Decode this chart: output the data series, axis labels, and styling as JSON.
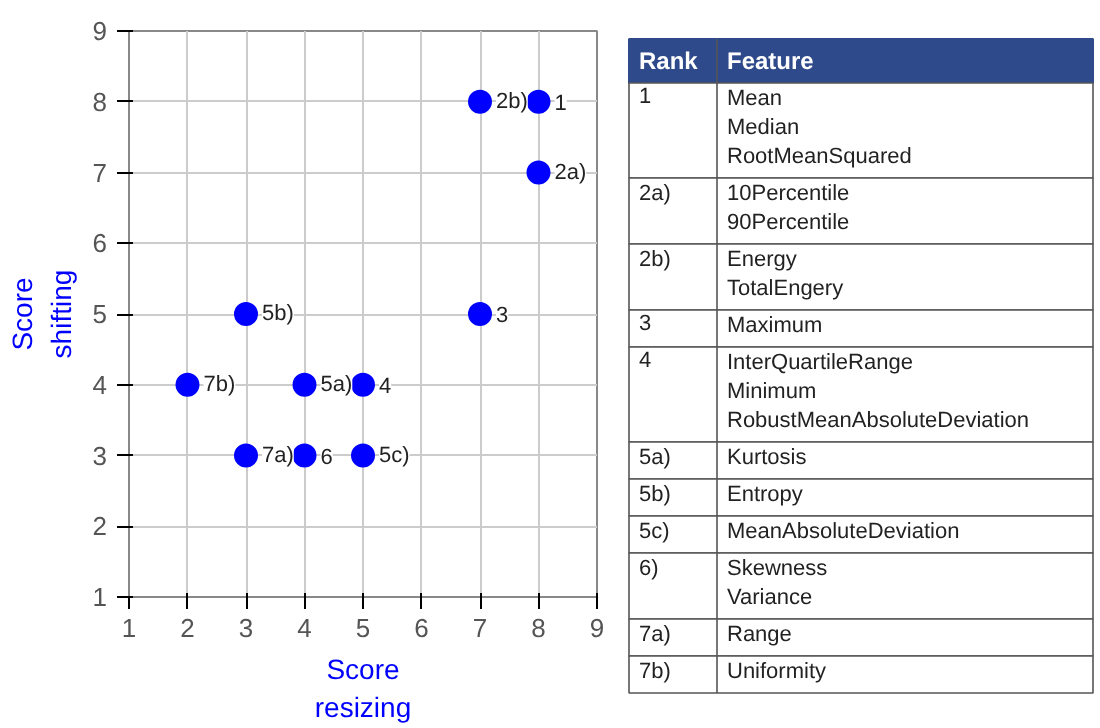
{
  "chart_data": [
    {
      "type": "scatter",
      "xlabel": "Score\nresizing",
      "ylabel": "Score\nshifting",
      "x": [
        8,
        7,
        8,
        7,
        5,
        4,
        3,
        5,
        4,
        3,
        2
      ],
      "values": [
        8,
        8,
        7,
        5,
        4,
        4,
        5,
        3,
        3,
        3,
        4
      ],
      "color": "#0000ff",
      "marker": "circle",
      "xlim": [
        1,
        9
      ],
      "ylim": [
        1,
        9
      ],
      "xticks": [
        1,
        2,
        3,
        4,
        5,
        6,
        7,
        8,
        9
      ],
      "yticks": [
        1,
        2,
        3,
        4,
        5,
        6,
        7,
        8,
        9
      ],
      "grid": true,
      "annotations": [
        {
          "text": "1",
          "x": 8,
          "y": 8
        },
        {
          "text": "2b)",
          "x": 7,
          "y": 8
        },
        {
          "text": "2a)",
          "x": 8,
          "y": 7
        },
        {
          "text": "3",
          "x": 7,
          "y": 5
        },
        {
          "text": "4",
          "x": 5,
          "y": 4
        },
        {
          "text": "5a)",
          "x": 4,
          "y": 4
        },
        {
          "text": "5b)",
          "x": 3,
          "y": 5
        },
        {
          "text": "5c)",
          "x": 5,
          "y": 3
        },
        {
          "text": "6",
          "x": 4,
          "y": 3
        },
        {
          "text": "7a)",
          "x": 3,
          "y": 3
        },
        {
          "text": "7b)",
          "x": 2,
          "y": 4
        }
      ]
    },
    {
      "type": "other",
      "annotations": [
        "Rank",
        "Feature",
        "1",
        "Mean\nMedian\nRootMeanSquared",
        "2a)",
        "10Percentile\n90Percentile",
        "2b)",
        "Energy\nTotalEngery",
        "3",
        "Maximum",
        "4",
        "InterQuartileRange\nMinimum\nRobustMeanAbsoluteDeviation",
        "5a)",
        "Kurtosis",
        "5b)",
        "Entropy",
        "5c)",
        "MeanAbsoluteDeviation",
        "6)",
        "Skewness\nVariance",
        "7a)",
        "Range",
        "7b)",
        "Uniformity"
      ]
    }
  ]
}
